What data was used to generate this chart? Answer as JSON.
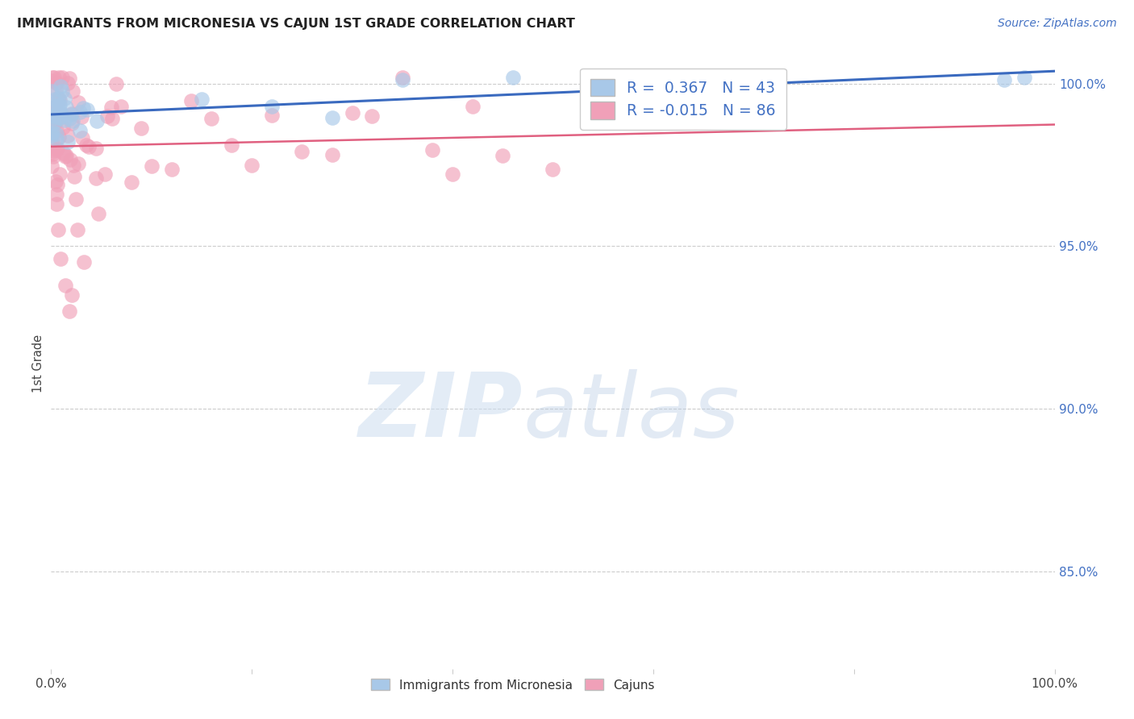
{
  "title": "IMMIGRANTS FROM MICRONESIA VS CAJUN 1ST GRADE CORRELATION CHART",
  "source": "Source: ZipAtlas.com",
  "ylabel": "1st Grade",
  "right_yticks": [
    "100.0%",
    "95.0%",
    "90.0%",
    "85.0%"
  ],
  "right_ytick_vals": [
    1.0,
    0.95,
    0.9,
    0.85
  ],
  "blue_color": "#a8c8e8",
  "pink_color": "#f0a0b8",
  "blue_line_color": "#3a6abf",
  "pink_line_color": "#e06080",
  "blue_R": 0.367,
  "pink_R": -0.015,
  "blue_N": 43,
  "pink_N": 86,
  "xlim": [
    0.0,
    1.0
  ],
  "ylim": [
    0.82,
    1.008
  ],
  "background_color": "#ffffff"
}
